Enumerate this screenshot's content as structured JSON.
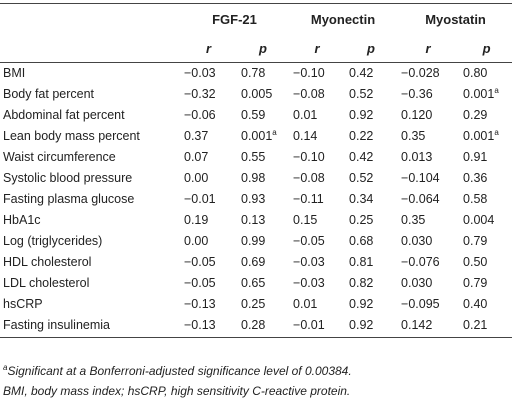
{
  "table": {
    "groups": [
      "",
      "FGF-21",
      "Myonectin",
      "Myostatin"
    ],
    "subheaders": [
      "",
      "r",
      "p",
      "r",
      "p",
      "r",
      "p"
    ],
    "rows": [
      {
        "label": "BMI",
        "cells": [
          "−0.03",
          "0.78",
          "−0.10",
          "0.42",
          "−0.028",
          "0.80"
        ],
        "sup": [
          "",
          "",
          "",
          "",
          "",
          ""
        ]
      },
      {
        "label": "Body fat percent",
        "cells": [
          "−0.32",
          "0.005",
          "−0.08",
          "0.52",
          "−0.36",
          "0.001"
        ],
        "sup": [
          "",
          "",
          "",
          "",
          "",
          "a"
        ]
      },
      {
        "label": "Abdominal fat percent",
        "cells": [
          "−0.06",
          "0.59",
          "0.01",
          "0.92",
          "0.120",
          "0.29"
        ],
        "sup": [
          "",
          "",
          "",
          "",
          "",
          ""
        ]
      },
      {
        "label": "Lean body mass percent",
        "cells": [
          "0.37",
          "0.001",
          "0.14",
          "0.22",
          "0.35",
          "0.001"
        ],
        "sup": [
          "",
          "a",
          "",
          "",
          "",
          "a"
        ]
      },
      {
        "label": "Waist circumference",
        "cells": [
          "0.07",
          "0.55",
          "−0.10",
          "0.42",
          "0.013",
          "0.91"
        ],
        "sup": [
          "",
          "",
          "",
          "",
          "",
          ""
        ]
      },
      {
        "label": "Systolic blood pressure",
        "cells": [
          "0.00",
          "0.98",
          "−0.08",
          "0.52",
          "−0.104",
          "0.36"
        ],
        "sup": [
          "",
          "",
          "",
          "",
          "",
          ""
        ]
      },
      {
        "label": "Fasting plasma glucose",
        "cells": [
          "−0.01",
          "0.93",
          "−0.11",
          "0.34",
          "−0.064",
          "0.58"
        ],
        "sup": [
          "",
          "",
          "",
          "",
          "",
          ""
        ]
      },
      {
        "label": "HbA1c",
        "cells": [
          "0.19",
          "0.13",
          "0.15",
          "0.25",
          "0.35",
          "0.004"
        ],
        "sup": [
          "",
          "",
          "",
          "",
          "",
          ""
        ]
      },
      {
        "label": "Log (triglycerides)",
        "cells": [
          "0.00",
          "0.99",
          "−0.05",
          "0.68",
          "0.030",
          "0.79"
        ],
        "sup": [
          "",
          "",
          "",
          "",
          "",
          ""
        ]
      },
      {
        "label": "HDL cholesterol",
        "cells": [
          "−0.05",
          "0.69",
          "−0.03",
          "0.81",
          "−0.076",
          "0.50"
        ],
        "sup": [
          "",
          "",
          "",
          "",
          "",
          ""
        ]
      },
      {
        "label": "LDL cholesterol",
        "cells": [
          "−0.05",
          "0.65",
          "−0.03",
          "0.82",
          "0.030",
          "0.79"
        ],
        "sup": [
          "",
          "",
          "",
          "",
          "",
          ""
        ]
      },
      {
        "label": "hsCRP",
        "cells": [
          "−0.13",
          "0.25",
          "0.01",
          "0.92",
          "−0.095",
          "0.40"
        ],
        "sup": [
          "",
          "",
          "",
          "",
          "",
          ""
        ]
      },
      {
        "label": "Fasting insulinemia",
        "cells": [
          "−0.13",
          "0.28",
          "−0.01",
          "0.92",
          "0.142",
          "0.21"
        ],
        "sup": [
          "",
          "",
          "",
          "",
          "",
          ""
        ]
      }
    ]
  },
  "footnotes": {
    "marker": "a",
    "note_a": "Significant at a Bonferroni-adjusted significance level of 0.00384.",
    "abbreviations": "BMI, body mass index; hsCRP, high sensitivity C-reactive protein."
  }
}
